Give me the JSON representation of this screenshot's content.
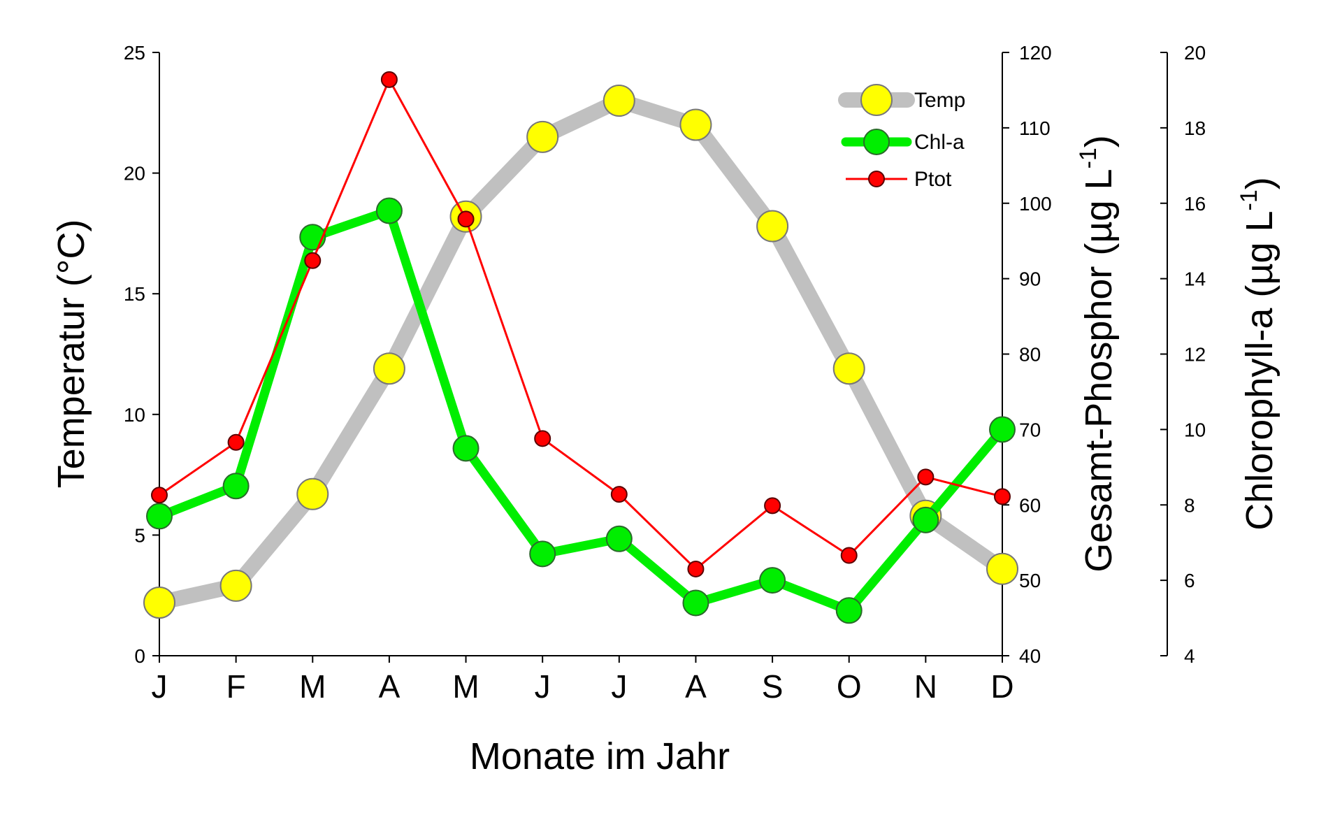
{
  "chart_data": {
    "type": "line",
    "categories": [
      "J",
      "F",
      "M",
      "A",
      "M",
      "J",
      "J",
      "A",
      "S",
      "O",
      "N",
      "D"
    ],
    "xlabel": "Monate im Jahr",
    "axes": {
      "left": {
        "label": "Temperatur (°C)",
        "ylim": [
          0,
          25
        ],
        "ticks": [
          "0",
          "5",
          "10",
          "15",
          "20",
          "25"
        ]
      },
      "right1": {
        "label_main": "Gesamt-Phosphor (µg L",
        "label_sup": "-1",
        "label_end": ")",
        "ylim": [
          40,
          120
        ],
        "ticks": [
          "40",
          "50",
          "60",
          "70",
          "80",
          "90",
          "100",
          "110",
          "120"
        ]
      },
      "right2": {
        "label_main": "Chlorophyll-a (µg L",
        "label_sup": "-1",
        "label_end": ")",
        "ylim": [
          4,
          20
        ],
        "ticks": [
          "4",
          "6",
          "8",
          "10",
          "12",
          "14",
          "16",
          "18",
          "20"
        ]
      }
    },
    "series": [
      {
        "name": "Temp",
        "axis": "left",
        "line_color": "#c0c0c0",
        "marker_color": "#ffff00",
        "values": [
          2.2,
          2.9,
          6.7,
          11.9,
          18.2,
          21.5,
          23.0,
          22.0,
          17.8,
          11.9,
          5.8,
          3.6
        ]
      },
      {
        "name": "Chl-a",
        "axis": "right2",
        "line_color": "#00ee00",
        "marker_color": "#00ee00",
        "values": [
          7.7,
          8.5,
          15.1,
          15.8,
          9.5,
          6.7,
          7.1,
          5.4,
          6.0,
          5.2,
          7.6,
          10.0
        ]
      },
      {
        "name": "Ptot",
        "axis": "right1",
        "line_color": "#ff0000",
        "marker_color": "#ff0000",
        "values": [
          61.3,
          68.3,
          92.4,
          116.4,
          97.9,
          68.8,
          61.4,
          51.5,
          59.9,
          53.3,
          63.7,
          61.1
        ]
      }
    ],
    "legend": {
      "position": "top-right",
      "entries": [
        "Temp",
        "Chl-a",
        "Ptot"
      ]
    }
  }
}
